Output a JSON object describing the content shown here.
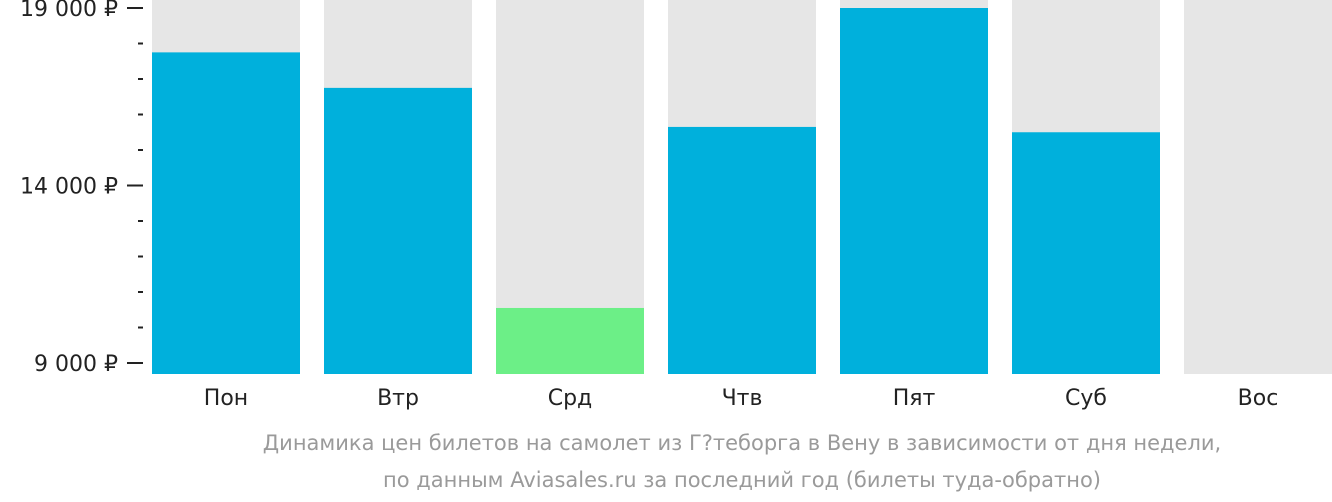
{
  "chart_data": {
    "type": "bar",
    "categories": [
      "Пон",
      "Втр",
      "Срд",
      "Чтв",
      "Пят",
      "Суб",
      "Вос"
    ],
    "values": [
      17750,
      16750,
      10550,
      15650,
      19000,
      15500,
      null
    ],
    "ylim": [
      9000,
      19300
    ],
    "yticks": [
      {
        "value": 19000,
        "label": "19 000 ₽"
      },
      {
        "value": 14000,
        "label": "14 000 ₽"
      },
      {
        "value": 9000,
        "label": "9 000 ₽"
      }
    ],
    "minor_tick_step": 1000,
    "highlight_index": 2,
    "colors": {
      "bar": "#00b0dc",
      "highlight": "#6cef87",
      "background_bar": "#e6e6e6",
      "axis": "#222222"
    },
    "caption": [
      "Динамика цен билетов на самолет из Г?теборга в Вену в зависимости от дня недели,",
      "по данным Aviasales.ru за последний год (билеты туда-обратно)"
    ]
  }
}
